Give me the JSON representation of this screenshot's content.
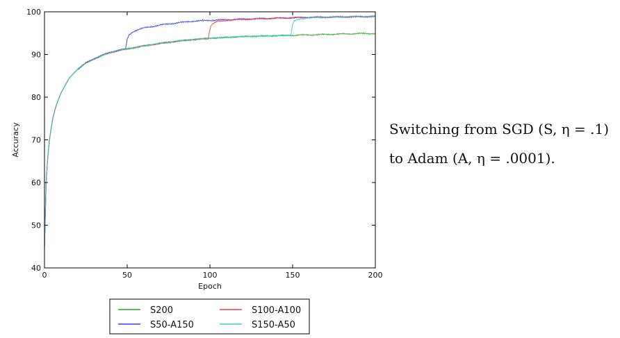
{
  "chart_data": {
    "type": "line",
    "title": "",
    "xlabel": "Epoch",
    "ylabel": "Accuracy",
    "xlim": [
      0,
      200
    ],
    "ylim": [
      40,
      100
    ],
    "xticks": [
      0,
      50,
      100,
      150,
      200
    ],
    "yticks": [
      40,
      50,
      60,
      70,
      80,
      90,
      100
    ],
    "grid": false,
    "legend_placement": "below",
    "series": [
      {
        "name": "S200",
        "color": "#2ca02c",
        "x": [
          0,
          1,
          2,
          3,
          5,
          7,
          10,
          15,
          20,
          25,
          30,
          35,
          40,
          45,
          50,
          60,
          70,
          80,
          90,
          100,
          110,
          120,
          130,
          140,
          150,
          160,
          170,
          180,
          190,
          200
        ],
        "y": [
          45,
          60,
          66,
          70,
          75,
          78,
          81,
          84.5,
          86.5,
          88,
          89,
          89.8,
          90.5,
          91,
          91.3,
          92,
          92.6,
          93.1,
          93.5,
          93.8,
          94.0,
          94.2,
          94.3,
          94.4,
          94.5,
          94.6,
          94.7,
          94.8,
          94.9,
          94.9
        ]
      },
      {
        "name": "S50-A150",
        "color": "#3a3af0",
        "x": [
          0,
          1,
          2,
          3,
          5,
          7,
          10,
          15,
          20,
          25,
          30,
          35,
          40,
          45,
          49,
          50,
          51,
          53,
          55,
          60,
          70,
          80,
          90,
          100,
          120,
          140,
          160,
          180,
          200
        ],
        "y": [
          45,
          60,
          66,
          70,
          75,
          78,
          81,
          84.5,
          86.5,
          88,
          89,
          89.8,
          90.5,
          91,
          91.2,
          93.5,
          94.5,
          95.2,
          95.6,
          96.2,
          96.9,
          97.4,
          97.8,
          98.0,
          98.3,
          98.5,
          98.7,
          98.8,
          98.9
        ]
      },
      {
        "name": "S100-A100",
        "color": "#f04040",
        "x": [
          0,
          1,
          2,
          3,
          5,
          7,
          10,
          15,
          20,
          25,
          30,
          35,
          40,
          45,
          50,
          60,
          70,
          80,
          90,
          99,
          100,
          101,
          103,
          105,
          110,
          120,
          140,
          160,
          180,
          200
        ],
        "y": [
          45,
          60,
          66,
          70,
          75,
          78,
          81,
          84.5,
          86.5,
          88,
          89,
          89.8,
          90.5,
          91,
          91.3,
          92,
          92.6,
          93.1,
          93.5,
          93.7,
          96.0,
          97.0,
          97.5,
          97.7,
          98.0,
          98.2,
          98.5,
          98.7,
          98.8,
          98.9
        ]
      },
      {
        "name": "S150-A50",
        "color": "#40c8c8",
        "x": [
          0,
          1,
          2,
          3,
          5,
          7,
          10,
          15,
          20,
          25,
          30,
          35,
          40,
          45,
          50,
          60,
          70,
          80,
          90,
          100,
          110,
          120,
          130,
          140,
          149,
          150,
          151,
          153,
          155,
          160,
          170,
          180,
          190,
          200
        ],
        "y": [
          45,
          60,
          66,
          70,
          75,
          78,
          81,
          84.5,
          86.5,
          88,
          89,
          89.8,
          90.5,
          91,
          91.3,
          92,
          92.6,
          93.1,
          93.5,
          93.8,
          94.0,
          94.2,
          94.3,
          94.4,
          94.5,
          97.0,
          97.8,
          98.2,
          98.4,
          98.6,
          98.7,
          98.8,
          98.9,
          98.9
        ]
      }
    ]
  },
  "caption": {
    "line1": "Switching from SGD (S, η = .1)",
    "line2": "to Adam (A, η = .0001)."
  }
}
